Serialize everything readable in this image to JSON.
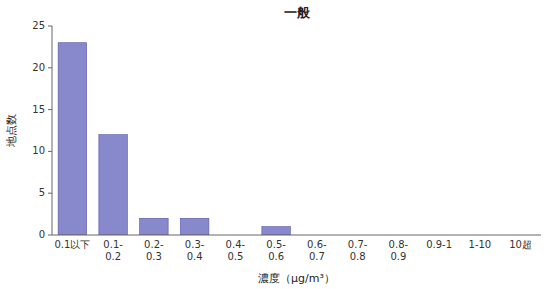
{
  "chart_data": {
    "type": "bar",
    "title": "一般",
    "xlabel": "濃度（μg/m³）",
    "ylabel": "地点数",
    "categories": [
      "0.1以下",
      "0.1-\n0.2",
      "0.2-\n0.3",
      "0.3-\n0.4",
      "0.4-\n0.5",
      "0.5-\n0.6",
      "0.6-\n0.7",
      "0.7-\n0.8",
      "0.8-\n0.9",
      "0.9-1",
      "1-10",
      "10超"
    ],
    "values": [
      23,
      12,
      2,
      2,
      0,
      1,
      0,
      0,
      0,
      0,
      0,
      0
    ],
    "color": "#8888cc",
    "ylim": [
      0,
      25
    ],
    "yticks": [
      0,
      5,
      10,
      15,
      20,
      25
    ],
    "grid": false
  }
}
